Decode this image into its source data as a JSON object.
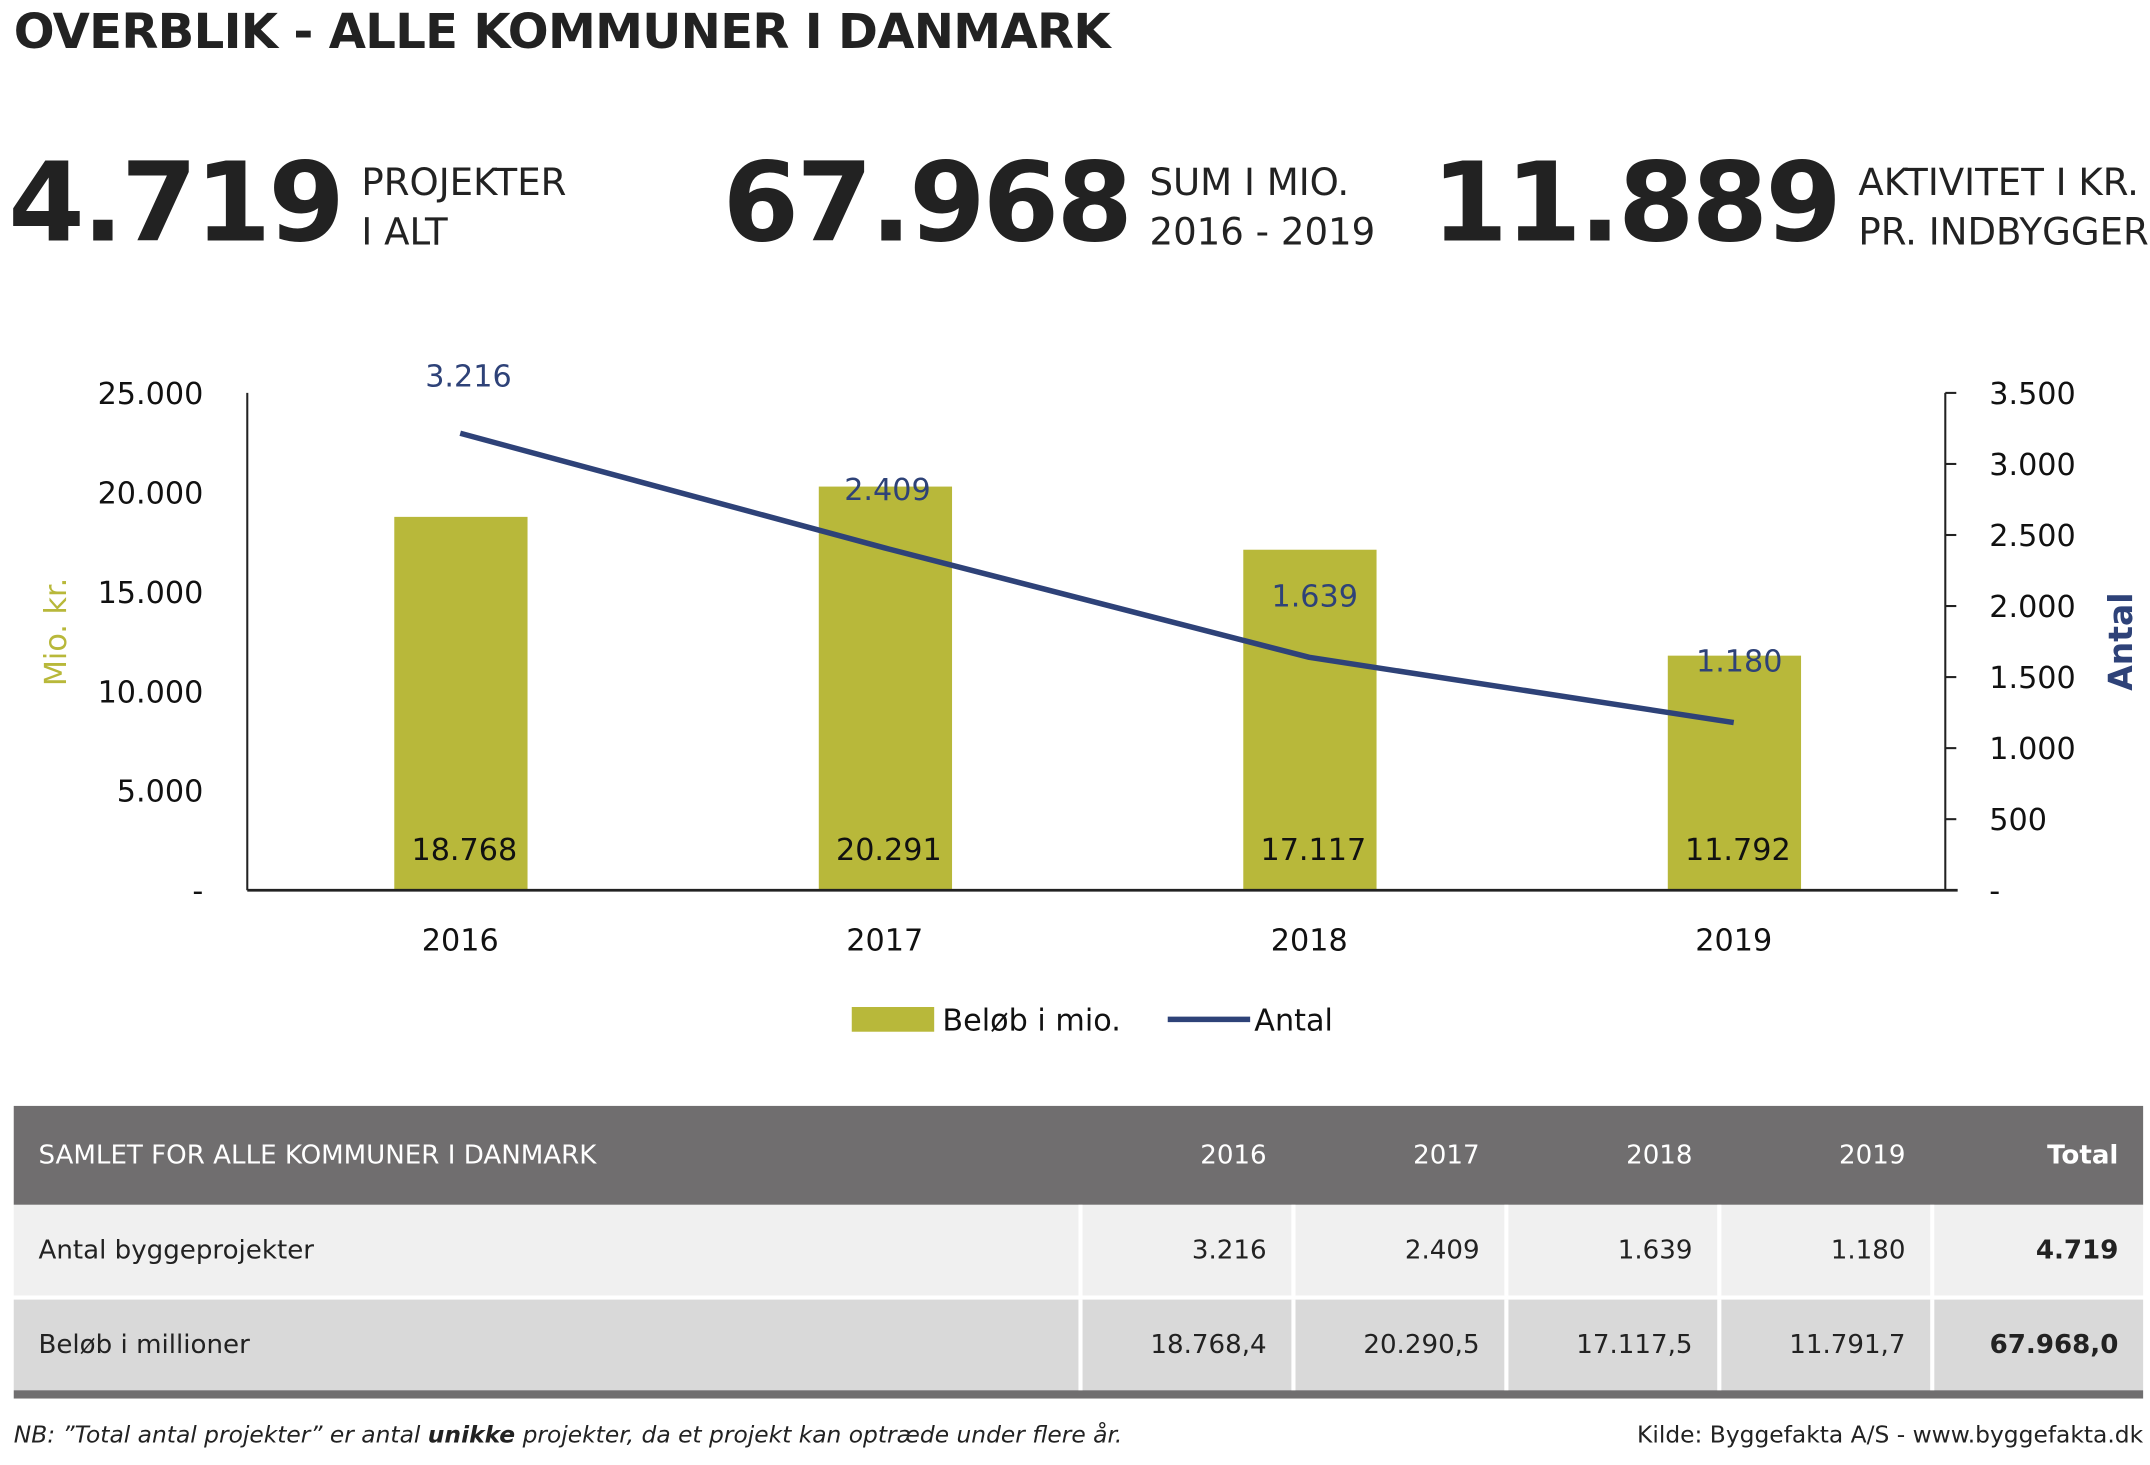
{
  "title": "OVERBLIK - ALLE KOMMUNER I DANMARK",
  "kpis": [
    {
      "value": "4.719",
      "line1": "PROJEKTER",
      "line2": "I ALT"
    },
    {
      "value": "67.968",
      "line1": "SUM I MIO.",
      "line2": "2016 - 2019"
    },
    {
      "value": "11.889",
      "line1": "AKTIVITET I KR.",
      "line2": "PR. INDBYGGER"
    }
  ],
  "chart_data": {
    "type": "bar+line",
    "categories": [
      "2016",
      "2017",
      "2018",
      "2019"
    ],
    "series": [
      {
        "name": "Beløb i mio.",
        "type": "bar",
        "axis": "left",
        "values": [
          18768,
          20291,
          17117,
          11792
        ],
        "labels": [
          "18.768",
          "20.291",
          "17.117",
          "11.792"
        ],
        "color": "#b8b83a"
      },
      {
        "name": "Antal",
        "type": "line",
        "axis": "right",
        "values": [
          3216,
          2409,
          1639,
          1180
        ],
        "labels": [
          "3.216",
          "2.409",
          "1.639",
          "1.180"
        ],
        "color": "#2e4278"
      }
    ],
    "ylabel_left": "Mio. kr.",
    "ylabel_right": "Antal",
    "ylim_left": [
      0,
      25000
    ],
    "ylim_right": [
      0,
      3500
    ],
    "yticks_left": [
      "-",
      "5.000",
      "10.000",
      "15.000",
      "20.000",
      "25.000"
    ],
    "yticks_right": [
      "-",
      "500",
      "1.000",
      "1.500",
      "2.000",
      "2.500",
      "3.000",
      "3.500"
    ],
    "grid": false,
    "legend": "bottom"
  },
  "table": {
    "header": [
      "SAMLET FOR ALLE KOMMUNER I DANMARK",
      "2016",
      "2017",
      "2018",
      "2019",
      "Total"
    ],
    "rows": [
      [
        "Antal byggeprojekter",
        "3.216",
        "2.409",
        "1.639",
        "1.180",
        "4.719"
      ],
      [
        "Beløb i millioner",
        "18.768,4",
        "20.290,5",
        "17.117,5",
        "11.791,7",
        "67.968,0"
      ]
    ]
  },
  "footer": {
    "note_pre": "NB: ”Total antal projekter” er antal ",
    "note_bold": "unikke",
    "note_post": " projekter, da et projekt kan optræde under flere år.",
    "source": "Kilde: Byggefakta A/S - www.byggefakta.dk"
  }
}
